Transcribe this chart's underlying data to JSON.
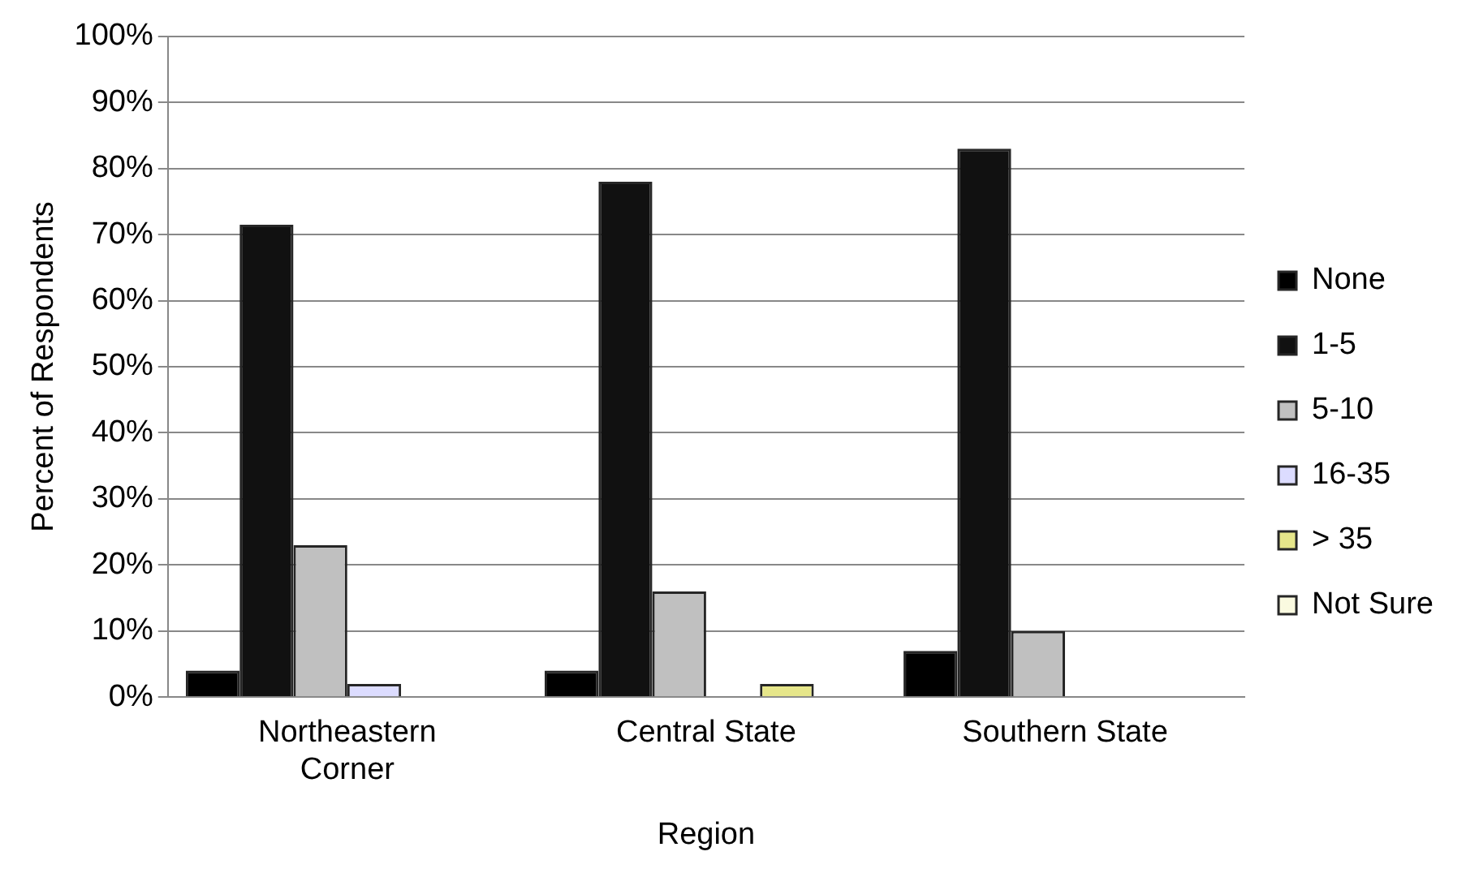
{
  "chart_data": {
    "type": "bar",
    "xlabel": "Region",
    "ylabel": "Percent of Respondents",
    "categories": [
      "Northeastern Corner",
      "Central State",
      "Southern State"
    ],
    "series": [
      {
        "name": "None",
        "color": "#000000",
        "values": [
          4,
          4,
          7
        ]
      },
      {
        "name": "1-5",
        "color": "#111111",
        "values": [
          71.5,
          78,
          83
        ]
      },
      {
        "name": "5-10",
        "color": "#c0c0c0",
        "values": [
          23,
          16,
          10
        ]
      },
      {
        "name": "16-35",
        "color": "#dcdcff",
        "values": [
          2,
          0,
          0
        ]
      },
      {
        "name": "> 35",
        "color": "#e6e68a",
        "values": [
          0,
          2,
          0
        ]
      },
      {
        "name": "Not Sure",
        "color": "#fafae0",
        "values": [
          0,
          0,
          0
        ]
      }
    ],
    "ylim": [
      0,
      100
    ],
    "yticks": [
      {
        "value": 0,
        "label": "0%"
      },
      {
        "value": 10,
        "label": "10%"
      },
      {
        "value": 20,
        "label": "20%"
      },
      {
        "value": 30,
        "label": "30%"
      },
      {
        "value": 40,
        "label": "40%"
      },
      {
        "value": 50,
        "label": "50%"
      },
      {
        "value": 60,
        "label": "60%"
      },
      {
        "value": 70,
        "label": "70%"
      },
      {
        "value": 80,
        "label": "80%"
      },
      {
        "value": 90,
        "label": "90%"
      },
      {
        "value": 100,
        "label": "100%"
      }
    ],
    "grid": "y",
    "legend": "right"
  }
}
